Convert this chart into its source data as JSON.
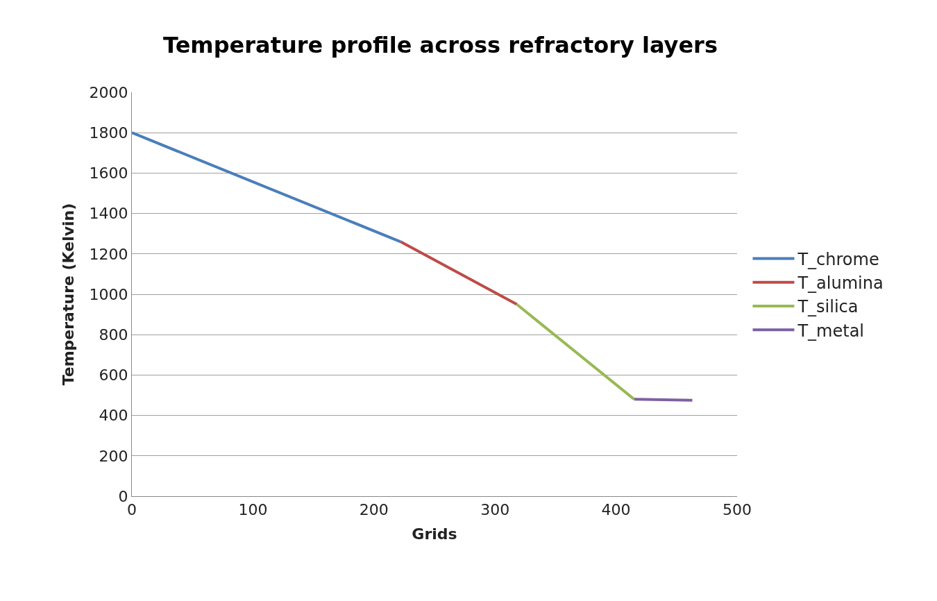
{
  "chart_data": {
    "type": "line",
    "title": "Temperature profile across refractory layers",
    "xlabel": "Grids",
    "ylabel": "Temperature (Kelvin)",
    "series": [
      {
        "name": "T_chrome",
        "color": "#4a7ebb",
        "x": [
          0,
          222
        ],
        "values": [
          1800,
          1260
        ]
      },
      {
        "name": "T_alumina",
        "color": "#be4b48",
        "x": [
          222,
          318
        ],
        "values": [
          1260,
          950
        ]
      },
      {
        "name": "T_silica",
        "color": "#98b954",
        "x": [
          318,
          415
        ],
        "values": [
          950,
          480
        ]
      },
      {
        "name": "T_metal",
        "color": "#7d60a0",
        "x": [
          415,
          463
        ],
        "values": [
          480,
          475
        ]
      }
    ],
    "xlim": [
      0,
      500
    ],
    "xticks": [
      0,
      100,
      200,
      300,
      400,
      500
    ],
    "ylim": [
      0,
      2000
    ],
    "yticks": [
      0,
      200,
      400,
      600,
      800,
      1000,
      1200,
      1400,
      1600,
      1800,
      2000
    ],
    "grid": "y",
    "legend": "right",
    "marker": "none",
    "line_style": "solid"
  }
}
